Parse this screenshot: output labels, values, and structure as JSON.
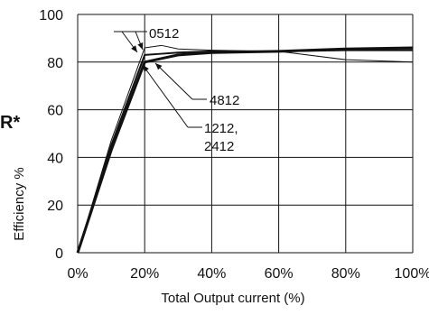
{
  "chart_data": {
    "type": "line",
    "xlabel": "Total Output current (%)",
    "ylabel": "Efficiency %",
    "xlim": [
      0,
      100
    ],
    "ylim": [
      0,
      100
    ],
    "x_ticks": [
      0,
      20,
      40,
      60,
      80,
      100
    ],
    "x_tick_labels": [
      "0%",
      "20%",
      "40%",
      "60%",
      "80%",
      "100%"
    ],
    "y_ticks": [
      0,
      20,
      40,
      60,
      80,
      100
    ],
    "y_tick_labels": [
      "0",
      "20",
      "40",
      "60",
      "80",
      "100"
    ],
    "grid": true,
    "series": [
      {
        "name": "0512",
        "x": [
          0,
          10,
          20,
          25,
          30,
          40,
          60,
          80,
          100
        ],
        "y": [
          0,
          47,
          86,
          87,
          85.5,
          85,
          84.5,
          81,
          80
        ],
        "stroke": 1
      },
      {
        "name": "4812",
        "x": [
          0,
          10,
          20,
          25,
          30,
          40,
          60,
          80,
          100
        ],
        "y": [
          0,
          45,
          83,
          83.5,
          84,
          84.5,
          84.5,
          85,
          85
        ],
        "stroke": 2
      },
      {
        "name": "1212, 2412",
        "x": [
          0,
          10,
          20,
          25,
          30,
          40,
          60,
          80,
          100
        ],
        "y": [
          0,
          43,
          80,
          81.5,
          83,
          84,
          84.5,
          85.5,
          86
        ],
        "stroke": 3
      }
    ],
    "annotations": {
      "a1": "0512",
      "a2": "4812",
      "a3_line1": "1212,",
      "a3_line2": "2412"
    },
    "side_text": "R*"
  },
  "colors": {
    "line": "#111111",
    "grid": "#111111",
    "background": "#ffffff"
  }
}
